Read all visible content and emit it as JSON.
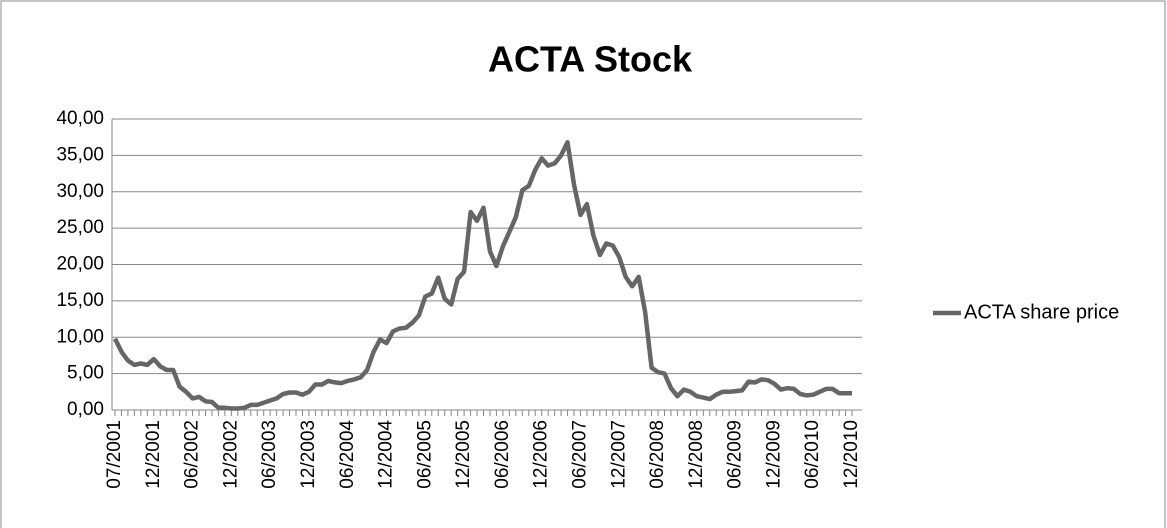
{
  "chart_data": {
    "type": "line",
    "title": "ACTA Stock",
    "categories": [
      "07/2001",
      null,
      null,
      null,
      null,
      null,
      "12/2001",
      null,
      null,
      null,
      null,
      null,
      "06/2002",
      null,
      null,
      null,
      null,
      null,
      "12/2002",
      null,
      null,
      null,
      null,
      null,
      "06/2003",
      null,
      null,
      null,
      null,
      null,
      "12/2003",
      null,
      null,
      null,
      null,
      null,
      "06/2004",
      null,
      null,
      null,
      null,
      null,
      "12/2004",
      null,
      null,
      null,
      null,
      null,
      "06/2005",
      null,
      null,
      null,
      null,
      null,
      "12/2005",
      null,
      null,
      null,
      null,
      null,
      "06/2006",
      null,
      null,
      null,
      null,
      null,
      "12/2006",
      null,
      null,
      null,
      null,
      null,
      "06/2007",
      null,
      null,
      null,
      null,
      null,
      "12/2007",
      null,
      null,
      null,
      null,
      null,
      "06/2008",
      null,
      null,
      null,
      null,
      null,
      "12/2008",
      null,
      null,
      null,
      null,
      null,
      "06/2009",
      null,
      null,
      null,
      null,
      null,
      "12/2009",
      null,
      null,
      null,
      null,
      null,
      "06/2010",
      null,
      null,
      null,
      null,
      null,
      "12/2010"
    ],
    "series": [
      {
        "name": "ACTA share price",
        "color": "#666666",
        "values": [
          9.8,
          8,
          6.8,
          6.2,
          6.4,
          6.2,
          7.0,
          6.0,
          5.5,
          5.5,
          3.2,
          2.5,
          1.6,
          1.8,
          1.2,
          1.1,
          0.3,
          0.3,
          0.2,
          0.2,
          0.3,
          0.7,
          0.7,
          1.0,
          1.3,
          1.6,
          2.2,
          2.4,
          2.4,
          2.1,
          2.5,
          3.5,
          3.5,
          4.0,
          3.8,
          3.7,
          4.0,
          4.2,
          4.5,
          5.5,
          8.0,
          9.7,
          9.2,
          10.8,
          11.2,
          11.3,
          12.0,
          13.0,
          15.6,
          16.0,
          18.2,
          15.3,
          14.5,
          18.0,
          19.0,
          27.2,
          26.0,
          27.8,
          21.8,
          19.8,
          22.5,
          24.5,
          26.5,
          30.2,
          30.8,
          33.0,
          34.6,
          33.6,
          33.9,
          35.0,
          36.8,
          31.0,
          26.8,
          28.3,
          24.0,
          21.3,
          22.9,
          22.6,
          21.0,
          18.3,
          17.0,
          18.3,
          13.5,
          5.8,
          5.2,
          5.0,
          3.0,
          1.9,
          2.8,
          2.5,
          1.9,
          1.7,
          1.5,
          2.1,
          2.5,
          2.5,
          2.6,
          2.7,
          3.9,
          3.8,
          4.2,
          4.1,
          3.6,
          2.8,
          3.0,
          2.9,
          2.2,
          2.0,
          2.1,
          2.5,
          2.9,
          2.9,
          2.3,
          2.3,
          2.3
        ]
      }
    ],
    "ylim": [
      0,
      40
    ],
    "yticks": [
      {
        "value": 0,
        "label": "0,00"
      },
      {
        "value": 5,
        "label": "5,00"
      },
      {
        "value": 10,
        "label": "10,00"
      },
      {
        "value": 15,
        "label": "15,00"
      },
      {
        "value": 20,
        "label": "20,00"
      },
      {
        "value": 25,
        "label": "25,00"
      },
      {
        "value": 30,
        "label": "30,00"
      },
      {
        "value": 35,
        "label": "35,00"
      },
      {
        "value": 40,
        "label": "40,00"
      }
    ],
    "grid": true,
    "legend": "right"
  }
}
